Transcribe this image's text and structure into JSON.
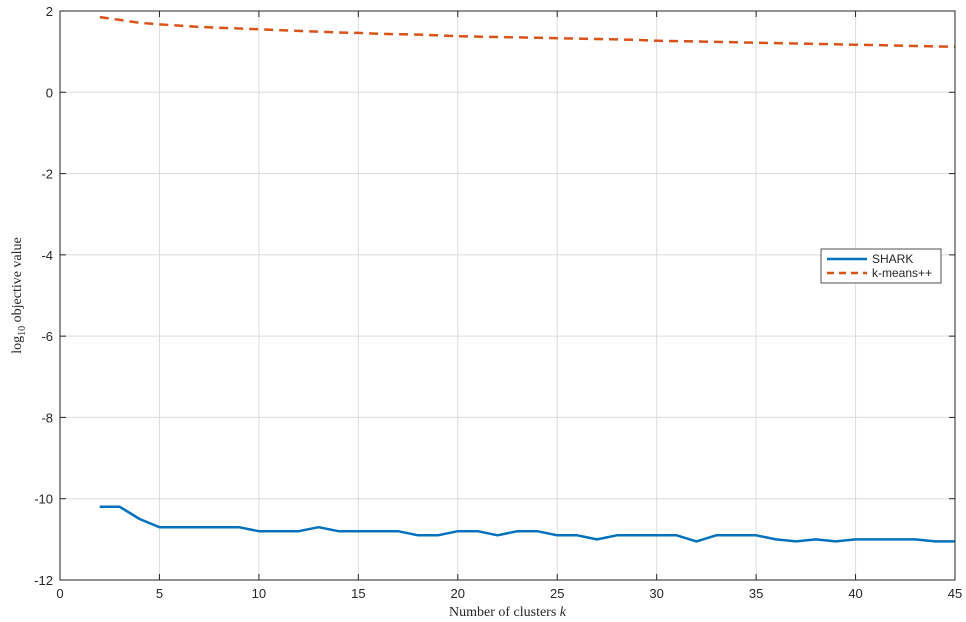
{
  "chart_data": {
    "type": "line",
    "xlabel": "Number of clusters",
    "xlabel_var": "k",
    "ylabel_prefix": "log",
    "ylabel_sub": "10",
    "ylabel_suffix": " objective value",
    "xlim": [
      0,
      45
    ],
    "ylim": [
      -12,
      2
    ],
    "xticks": [
      0,
      5,
      10,
      15,
      20,
      25,
      30,
      35,
      40,
      45
    ],
    "yticks": [
      2,
      0,
      -2,
      -4,
      -6,
      -8,
      -10,
      -12
    ],
    "grid": true,
    "legend_position": "right",
    "x": [
      2,
      3,
      4,
      5,
      6,
      7,
      8,
      9,
      10,
      11,
      12,
      13,
      14,
      15,
      16,
      17,
      18,
      19,
      20,
      21,
      22,
      23,
      24,
      25,
      26,
      27,
      28,
      29,
      30,
      31,
      32,
      33,
      34,
      35,
      36,
      37,
      38,
      39,
      40,
      41,
      42,
      43,
      44,
      45
    ],
    "series": [
      {
        "name": "SHARK",
        "color": "#0072bd",
        "dash": "solid",
        "values": [
          -10.2,
          -10.2,
          -10.5,
          -10.7,
          -10.7,
          -10.7,
          -10.7,
          -10.7,
          -10.8,
          -10.8,
          -10.8,
          -10.7,
          -10.8,
          -10.8,
          -10.8,
          -10.8,
          -10.9,
          -10.9,
          -10.8,
          -10.8,
          -10.9,
          -10.8,
          -10.8,
          -10.9,
          -10.9,
          -11.0,
          -10.9,
          -10.9,
          -10.9,
          -10.9,
          -11.05,
          -10.9,
          -10.9,
          -10.9,
          -11.0,
          -11.05,
          -11.0,
          -11.05,
          -11.0,
          -11.0,
          -11.0,
          -11.0,
          -11.05,
          -11.05
        ]
      },
      {
        "name": "k-means++",
        "color": "#d95319",
        "dash": "dashed",
        "values": [
          1.85,
          1.78,
          1.71,
          1.67,
          1.64,
          1.61,
          1.59,
          1.57,
          1.55,
          1.53,
          1.51,
          1.49,
          1.47,
          1.46,
          1.44,
          1.43,
          1.42,
          1.4,
          1.38,
          1.37,
          1.36,
          1.35,
          1.34,
          1.33,
          1.32,
          1.31,
          1.3,
          1.29,
          1.27,
          1.26,
          1.25,
          1.24,
          1.23,
          1.22,
          1.21,
          1.2,
          1.19,
          1.18,
          1.17,
          1.16,
          1.15,
          1.14,
          1.13,
          1.12
        ]
      }
    ]
  }
}
